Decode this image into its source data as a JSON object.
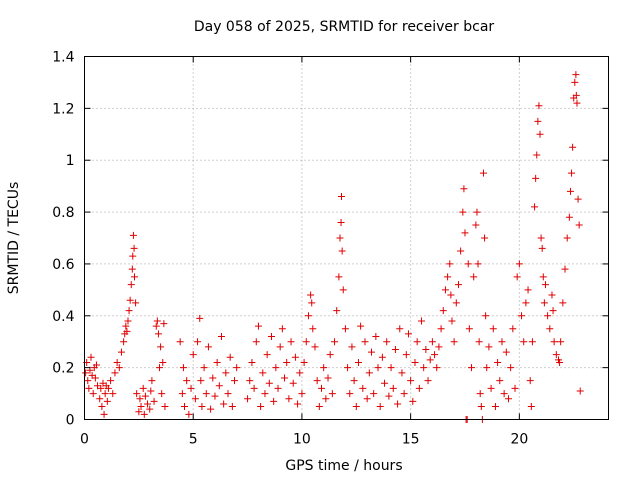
{
  "chart_data": {
    "type": "scatter",
    "title": "Day 058 of 2025, SRMTID for receiver bcar",
    "xlabel": "GPS time / hours",
    "ylabel": "SRMTID / TECUs",
    "xlim": [
      0,
      24.1
    ],
    "ylim": [
      0,
      1.4
    ],
    "xticks": [
      0,
      5,
      10,
      15,
      20
    ],
    "xtick_labels": [
      "0",
      "5",
      "10",
      "15",
      "20"
    ],
    "yticks": [
      0,
      0.2,
      0.4,
      0.6,
      0.8,
      1.0,
      1.2,
      1.4
    ],
    "ytick_labels": [
      "0",
      "0.2",
      "0.4",
      "0.6",
      "0.8",
      "1",
      "1.2",
      "1.4"
    ],
    "grid": true,
    "marker": "+",
    "color": "#e00000",
    "series": [
      {
        "name": "SRMTID",
        "points": [
          [
            0.05,
            0.18
          ],
          [
            0.1,
            0.22
          ],
          [
            0.15,
            0.15
          ],
          [
            0.2,
            0.12
          ],
          [
            0.25,
            0.19
          ],
          [
            0.3,
            0.24
          ],
          [
            0.35,
            0.17
          ],
          [
            0.4,
            0.1
          ],
          [
            0.45,
            0.2
          ],
          [
            0.5,
            0.16
          ],
          [
            0.55,
            0.21
          ],
          [
            0.6,
            0.13
          ],
          [
            0.7,
            0.08
          ],
          [
            0.75,
            0.12
          ],
          [
            0.8,
            0.05
          ],
          [
            0.85,
            0.14
          ],
          [
            0.9,
            0.02
          ],
          [
            0.95,
            0.1
          ],
          [
            1.0,
            0.13
          ],
          [
            1.05,
            0.07
          ],
          [
            1.1,
            0.12
          ],
          [
            1.2,
            0.15
          ],
          [
            1.3,
            0.1
          ],
          [
            1.4,
            0.18
          ],
          [
            1.5,
            0.22
          ],
          [
            1.6,
            0.2
          ],
          [
            1.7,
            0.26
          ],
          [
            1.8,
            0.3
          ],
          [
            1.85,
            0.33
          ],
          [
            1.9,
            0.36
          ],
          [
            1.95,
            0.34
          ],
          [
            2.0,
            0.38
          ],
          [
            2.05,
            0.42
          ],
          [
            2.1,
            0.46
          ],
          [
            2.15,
            0.52
          ],
          [
            2.2,
            0.58
          ],
          [
            2.22,
            0.63
          ],
          [
            2.25,
            0.71
          ],
          [
            2.28,
            0.66
          ],
          [
            2.3,
            0.55
          ],
          [
            2.35,
            0.45
          ],
          [
            2.4,
            0.1
          ],
          [
            2.5,
            0.03
          ],
          [
            2.55,
            0.08
          ],
          [
            2.6,
            0.05
          ],
          [
            2.7,
            0.12
          ],
          [
            2.75,
            0.02
          ],
          [
            2.8,
            0.09
          ],
          [
            2.9,
            0.06
          ],
          [
            3.0,
            0.04
          ],
          [
            3.05,
            0.11
          ],
          [
            3.1,
            0.15
          ],
          [
            3.2,
            0.07
          ],
          [
            3.3,
            0.36
          ],
          [
            3.35,
            0.38
          ],
          [
            3.4,
            0.33
          ],
          [
            3.45,
            0.2
          ],
          [
            3.5,
            0.28
          ],
          [
            3.55,
            0.1
          ],
          [
            3.6,
            0.22
          ],
          [
            3.65,
            0.37
          ],
          [
            3.7,
            0.05
          ],
          [
            4.4,
            0.3
          ],
          [
            4.5,
            0.1
          ],
          [
            4.55,
            0.2
          ],
          [
            4.6,
            0.05
          ],
          [
            4.7,
            0.15
          ],
          [
            4.8,
            0.02
          ],
          [
            4.9,
            0.12
          ],
          [
            5.0,
            0.25
          ],
          [
            5.1,
            0.08
          ],
          [
            5.2,
            0.3
          ],
          [
            5.3,
            0.39
          ],
          [
            5.35,
            0.15
          ],
          [
            5.4,
            0.05
          ],
          [
            5.5,
            0.2
          ],
          [
            5.6,
            0.1
          ],
          [
            5.7,
            0.28
          ],
          [
            5.8,
            0.04
          ],
          [
            5.9,
            0.16
          ],
          [
            6.0,
            0.09
          ],
          [
            6.1,
            0.22
          ],
          [
            6.2,
            0.13
          ],
          [
            6.3,
            0.32
          ],
          [
            6.4,
            0.06
          ],
          [
            6.5,
            0.18
          ],
          [
            6.6,
            0.1
          ],
          [
            6.7,
            0.24
          ],
          [
            6.8,
            0.05
          ],
          [
            6.9,
            0.15
          ],
          [
            7.0,
            0.2
          ],
          [
            7.5,
            0.08
          ],
          [
            7.6,
            0.15
          ],
          [
            7.7,
            0.22
          ],
          [
            7.8,
            0.12
          ],
          [
            7.9,
            0.3
          ],
          [
            8.0,
            0.36
          ],
          [
            8.1,
            0.05
          ],
          [
            8.2,
            0.18
          ],
          [
            8.3,
            0.1
          ],
          [
            8.4,
            0.25
          ],
          [
            8.5,
            0.14
          ],
          [
            8.6,
            0.32
          ],
          [
            8.7,
            0.07
          ],
          [
            8.8,
            0.2
          ],
          [
            8.9,
            0.12
          ],
          [
            9.0,
            0.28
          ],
          [
            9.1,
            0.35
          ],
          [
            9.2,
            0.16
          ],
          [
            9.3,
            0.22
          ],
          [
            9.4,
            0.08
          ],
          [
            9.5,
            0.3
          ],
          [
            9.6,
            0.14
          ],
          [
            9.7,
            0.24
          ],
          [
            9.8,
            0.06
          ],
          [
            9.9,
            0.18
          ],
          [
            10.0,
            0.1
          ],
          [
            10.1,
            0.22
          ],
          [
            10.2,
            0.3
          ],
          [
            10.3,
            0.4
          ],
          [
            10.4,
            0.48
          ],
          [
            10.45,
            0.45
          ],
          [
            10.5,
            0.35
          ],
          [
            10.6,
            0.28
          ],
          [
            10.7,
            0.15
          ],
          [
            10.8,
            0.05
          ],
          [
            10.9,
            0.12
          ],
          [
            11.0,
            0.2
          ],
          [
            11.1,
            0.08
          ],
          [
            11.2,
            0.16
          ],
          [
            11.3,
            0.25
          ],
          [
            11.4,
            0.1
          ],
          [
            11.5,
            0.3
          ],
          [
            11.6,
            0.42
          ],
          [
            11.7,
            0.55
          ],
          [
            11.75,
            0.7
          ],
          [
            11.8,
            0.76
          ],
          [
            11.82,
            0.86
          ],
          [
            11.85,
            0.65
          ],
          [
            11.9,
            0.5
          ],
          [
            12.0,
            0.35
          ],
          [
            12.1,
            0.2
          ],
          [
            12.2,
            0.1
          ],
          [
            12.3,
            0.28
          ],
          [
            12.4,
            0.15
          ],
          [
            12.5,
            0.05
          ],
          [
            12.6,
            0.22
          ],
          [
            12.7,
            0.36
          ],
          [
            12.8,
            0.12
          ],
          [
            12.9,
            0.3
          ],
          [
            13.0,
            0.08
          ],
          [
            13.1,
            0.18
          ],
          [
            13.2,
            0.26
          ],
          [
            13.3,
            0.1
          ],
          [
            13.4,
            0.32
          ],
          [
            13.5,
            0.2
          ],
          [
            13.6,
            0.05
          ],
          [
            13.7,
            0.24
          ],
          [
            13.8,
            0.14
          ],
          [
            13.9,
            0.3
          ],
          [
            14.0,
            0.09
          ],
          [
            14.1,
            0.2
          ],
          [
            14.2,
            0.12
          ],
          [
            14.3,
            0.27
          ],
          [
            14.4,
            0.06
          ],
          [
            14.5,
            0.35
          ],
          [
            14.6,
            0.18
          ],
          [
            14.7,
            0.1
          ],
          [
            14.8,
            0.25
          ],
          [
            14.9,
            0.33
          ],
          [
            15.0,
            0.15
          ],
          [
            15.1,
            0.07
          ],
          [
            15.2,
            0.22
          ],
          [
            15.3,
            0.3
          ],
          [
            15.4,
            0.12
          ],
          [
            15.5,
            0.38
          ],
          [
            15.6,
            0.2
          ],
          [
            15.7,
            0.27
          ],
          [
            15.8,
            0.15
          ],
          [
            15.9,
            0.23
          ],
          [
            16.0,
            0.3
          ],
          [
            16.1,
            0.25
          ],
          [
            16.2,
            0.2
          ],
          [
            16.3,
            0.28
          ],
          [
            16.4,
            0.35
          ],
          [
            16.5,
            0.42
          ],
          [
            16.6,
            0.5
          ],
          [
            16.7,
            0.55
          ],
          [
            16.8,
            0.6
          ],
          [
            16.85,
            0.48
          ],
          [
            16.9,
            0.38
          ],
          [
            17.0,
            0.3
          ],
          [
            17.1,
            0.45
          ],
          [
            17.2,
            0.52
          ],
          [
            17.3,
            0.65
          ],
          [
            17.4,
            0.8
          ],
          [
            17.45,
            0.89
          ],
          [
            17.5,
            0.72
          ],
          [
            17.55,
            0.0
          ],
          [
            17.6,
            0.0
          ],
          [
            17.65,
            0.6
          ],
          [
            17.7,
            0.35
          ],
          [
            17.8,
            0.2
          ],
          [
            17.9,
            0.55
          ],
          [
            18.0,
            0.75
          ],
          [
            18.05,
            0.8
          ],
          [
            18.1,
            0.6
          ],
          [
            18.15,
            0.3
          ],
          [
            18.2,
            0.1
          ],
          [
            18.25,
            0.05
          ],
          [
            18.3,
            0.0
          ],
          [
            18.35,
            0.95
          ],
          [
            18.4,
            0.7
          ],
          [
            18.45,
            0.4
          ],
          [
            18.5,
            0.2
          ],
          [
            18.6,
            0.28
          ],
          [
            18.7,
            0.12
          ],
          [
            18.8,
            0.35
          ],
          [
            18.9,
            0.05
          ],
          [
            19.0,
            0.22
          ],
          [
            19.1,
            0.15
          ],
          [
            19.2,
            0.3
          ],
          [
            19.3,
            0.1
          ],
          [
            19.4,
            0.26
          ],
          [
            19.5,
            0.08
          ],
          [
            19.6,
            0.2
          ],
          [
            19.7,
            0.35
          ],
          [
            19.8,
            0.12
          ],
          [
            19.9,
            0.55
          ],
          [
            20.0,
            0.6
          ],
          [
            20.1,
            0.4
          ],
          [
            20.2,
            0.3
          ],
          [
            20.3,
            0.45
          ],
          [
            20.4,
            0.5
          ],
          [
            20.5,
            0.15
          ],
          [
            20.55,
            0.05
          ],
          [
            20.6,
            0.3
          ],
          [
            20.7,
            0.82
          ],
          [
            20.75,
            0.93
          ],
          [
            20.8,
            1.02
          ],
          [
            20.85,
            1.15
          ],
          [
            20.9,
            1.21
          ],
          [
            20.95,
            1.1
          ],
          [
            21.0,
            0.7
          ],
          [
            21.05,
            0.66
          ],
          [
            21.1,
            0.55
          ],
          [
            21.15,
            0.45
          ],
          [
            21.2,
            0.52
          ],
          [
            21.3,
            0.4
          ],
          [
            21.4,
            0.35
          ],
          [
            21.5,
            0.48
          ],
          [
            21.55,
            0.42
          ],
          [
            21.6,
            0.3
          ],
          [
            21.7,
            0.25
          ],
          [
            21.8,
            0.23
          ],
          [
            21.85,
            0.22
          ],
          [
            21.9,
            0.3
          ],
          [
            22.0,
            0.45
          ],
          [
            22.1,
            0.58
          ],
          [
            22.2,
            0.7
          ],
          [
            22.3,
            0.78
          ],
          [
            22.35,
            0.88
          ],
          [
            22.4,
            0.95
          ],
          [
            22.45,
            1.05
          ],
          [
            22.5,
            1.24
          ],
          [
            22.55,
            1.3
          ],
          [
            22.6,
            1.33
          ],
          [
            22.62,
            1.25
          ],
          [
            22.65,
            1.22
          ],
          [
            22.7,
            0.85
          ],
          [
            22.75,
            0.75
          ],
          [
            22.8,
            0.11
          ]
        ]
      }
    ]
  }
}
